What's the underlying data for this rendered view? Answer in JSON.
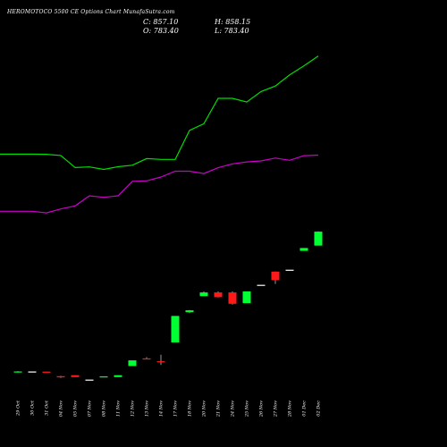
{
  "header": {
    "title": "HEROMOTOCO 5500 CE Options Chart MunafaSutra.com",
    "close": "C: 857.10",
    "open": "O: 783.40",
    "high": "H: 858.15",
    "low": "L: 783.40"
  },
  "colors": {
    "up": "#00ff33",
    "down": "#ff1a1a",
    "flat": "#ffffff",
    "band_upper": "#00dd00",
    "band_lower": "#cc00cc",
    "background": "#000000"
  },
  "chart_data": {
    "type": "candlestick",
    "categories": [
      "29 Oct",
      "30 Oct",
      "31 Oct",
      "04 Nov",
      "05 Nov",
      "07 Nov",
      "08 Nov",
      "11 Nov",
      "12 Nov",
      "13 Nov",
      "14 Nov",
      "17 Nov",
      "18 Nov",
      "20 Nov",
      "21 Nov",
      "24 Nov",
      "25 Nov",
      "26 Nov",
      "27 Nov",
      "28 Nov",
      "01 Dec",
      "02 Dec"
    ],
    "candles": [
      {
        "open": 112,
        "high": 118,
        "low": 110,
        "close": 116
      },
      {
        "open": 116,
        "high": 116,
        "low": 116,
        "close": 116
      },
      {
        "open": 115,
        "high": 115,
        "low": 111,
        "close": 112
      },
      {
        "open": 91,
        "high": 93,
        "low": 82,
        "close": 85
      },
      {
        "open": 96,
        "high": 96,
        "low": 86,
        "close": 86
      },
      {
        "open": 73,
        "high": 73,
        "low": 73,
        "close": 73
      },
      {
        "open": 86,
        "high": 90,
        "low": 86,
        "close": 90
      },
      {
        "open": 86,
        "high": 96,
        "low": 86,
        "close": 96
      },
      {
        "open": 145,
        "high": 175,
        "low": 145,
        "close": 175
      },
      {
        "open": 185,
        "high": 192,
        "low": 180,
        "close": 180
      },
      {
        "open": 170,
        "high": 205,
        "low": 150,
        "close": 165
      },
      {
        "open": 270,
        "high": 410,
        "low": 270,
        "close": 410
      },
      {
        "open": 430,
        "high": 442,
        "low": 425,
        "close": 440
      },
      {
        "open": 515,
        "high": 540,
        "low": 515,
        "close": 535
      },
      {
        "open": 535,
        "high": 540,
        "low": 508,
        "close": 510
      },
      {
        "open": 535,
        "high": 540,
        "low": 470,
        "close": 475
      },
      {
        "open": 478,
        "high": 540,
        "low": 478,
        "close": 540
      },
      {
        "open": 575,
        "high": 575,
        "low": 575,
        "close": 575
      },
      {
        "open": 645,
        "high": 645,
        "low": 580,
        "close": 600
      },
      {
        "open": 655,
        "high": 655,
        "low": 655,
        "close": 655
      },
      {
        "open": 755,
        "high": 770,
        "low": 755,
        "close": 770
      },
      {
        "open": 783.4,
        "high": 858.15,
        "low": 783.4,
        "close": 857.1
      }
    ],
    "bands": {
      "upper": [
        1035,
        1035,
        1034,
        1028,
        966,
        969,
        956,
        970,
        978,
        1012,
        1008,
        1008,
        1158,
        1192,
        1323,
        1323,
        1304,
        1358,
        1387,
        1444,
        1491,
        1542
      ],
      "lower": [
        740,
        740,
        732,
        752,
        768,
        820,
        812,
        820,
        895,
        897,
        917,
        947,
        947,
        935,
        965,
        985,
        995,
        1000,
        1015,
        1003,
        1027,
        1030
      ]
    },
    "band_ylim": [
      700,
      1600
    ],
    "candle_ylim": [
      0,
      900
    ],
    "grid": false,
    "legend": "none"
  }
}
